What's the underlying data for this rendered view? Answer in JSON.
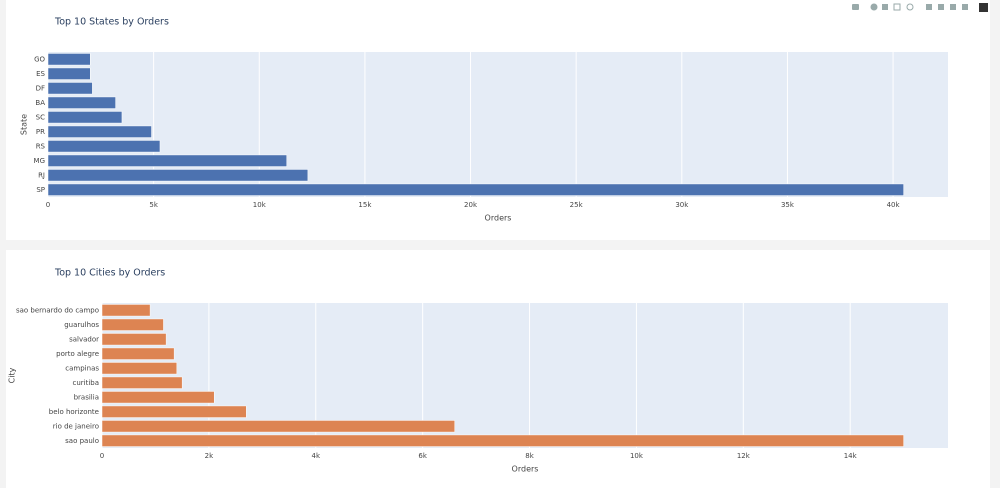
{
  "chart_data": [
    {
      "type": "bar",
      "orientation": "horizontal",
      "title": "Top 10 States by Orders",
      "x_label": "Orders",
      "y_label": "State",
      "categories": [
        "SP",
        "RJ",
        "MG",
        "RS",
        "PR",
        "SC",
        "BA",
        "DF",
        "ES",
        "GO"
      ],
      "values": [
        40500,
        12300,
        11300,
        5300,
        4900,
        3500,
        3200,
        2100,
        2000,
        2000
      ],
      "color": "#4c72b0",
      "xlim": [
        0,
        42600
      ],
      "xticks": [
        0,
        {
          "value": 5000,
          "label": "5k"
        },
        {
          "value": 10000,
          "label": "10k"
        },
        {
          "value": 15000,
          "label": "15k"
        },
        {
          "value": 20000,
          "label": "20k"
        },
        {
          "value": 25000,
          "label": "25k"
        },
        {
          "value": 30000,
          "label": "30k"
        },
        {
          "value": 35000,
          "label": "35k"
        },
        {
          "value": 40000,
          "label": "40k"
        }
      ],
      "grid": true
    },
    {
      "type": "bar",
      "orientation": "horizontal",
      "title": "Top 10 Cities by Orders",
      "x_label": "Orders",
      "y_label": "City",
      "categories": [
        "sao paulo",
        "rio de janeiro",
        "belo horizonte",
        "brasilia",
        "curitiba",
        "campinas",
        "porto alegre",
        "salvador",
        "guarulhos",
        "sao bernardo do campo"
      ],
      "values": [
        15000,
        6600,
        2700,
        2100,
        1500,
        1400,
        1350,
        1200,
        1150,
        900
      ],
      "color": "#dd8452",
      "xlim": [
        0,
        15830
      ],
      "xticks": [
        0,
        {
          "value": 2000,
          "label": "2k"
        },
        {
          "value": 4000,
          "label": "4k"
        },
        {
          "value": 6000,
          "label": "6k"
        },
        {
          "value": 8000,
          "label": "8k"
        },
        {
          "value": 10000,
          "label": "10k"
        },
        {
          "value": 12000,
          "label": "12k"
        },
        {
          "value": 14000,
          "label": "14k"
        }
      ],
      "grid": true
    }
  ]
}
